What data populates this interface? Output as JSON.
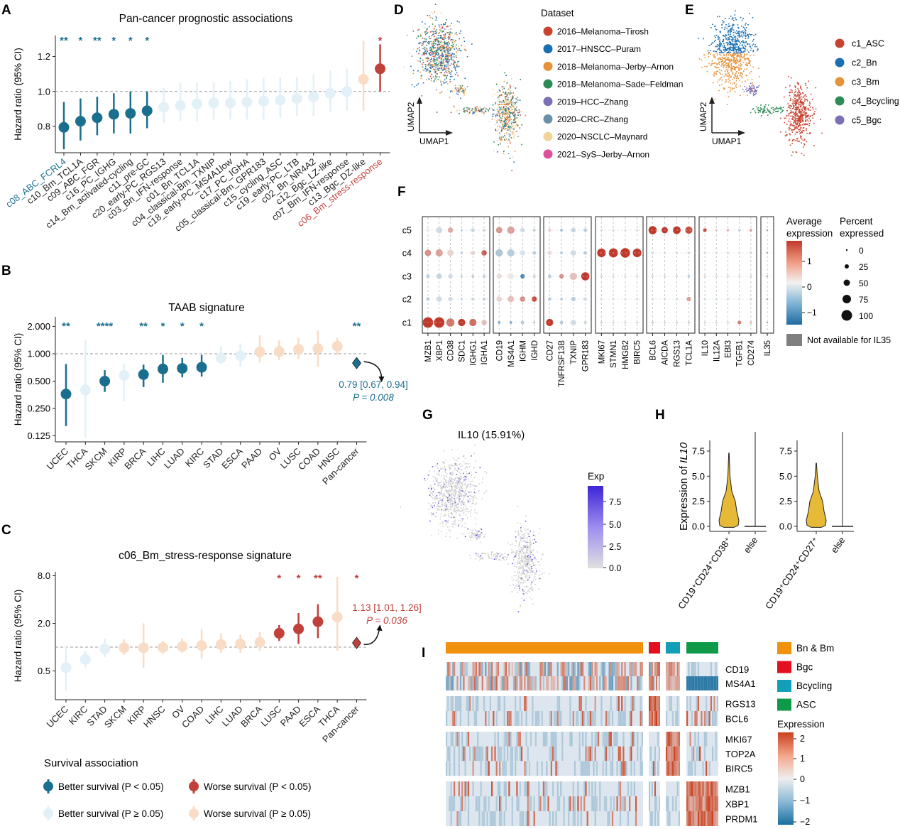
{
  "colors": {
    "better_sig": "#1b6f8e",
    "better_ns": "#e2f0f7",
    "worse_sig": "#c0413b",
    "worse_ns": "#f9dcc6",
    "grid": "#999999"
  },
  "panels": {
    "A": "A",
    "B": "B",
    "C": "C",
    "D": "D",
    "E": "E",
    "F": "F",
    "G": "G",
    "H": "H",
    "I": "I"
  },
  "chart_data": [
    {
      "panel": "A",
      "type": "scatter",
      "title": "Pan-cancer prognostic associations",
      "ylabel": "Hazard ratio (95% CI)",
      "ylim": [
        0.65,
        1.32
      ],
      "yticks": [
        "0.8",
        "1.0",
        "1.2"
      ],
      "reference_line": 1.0,
      "categories": [
        "c08_ABC_FCRL4",
        "c10_Bm_TCL1A",
        "c09_ABC_FGR",
        "c16_PC_IGHG",
        "c14_Bm_activated-cycling",
        "c11_pre-GC",
        "c20_early-PC_RGS13",
        "c03_Bn_IFN-response",
        "c01_Bn_TCL1A",
        "c04_classical-Bm_TXNIP",
        "c18_early-PC_MS4A1low",
        "c17_PC_IGHA",
        "c05_classical-Bm_GPR183",
        "c15_cycling_ASC",
        "c19_early-PC_LTB",
        "c02_Bn_NR4A2",
        "c12_Bgc_LZ-like",
        "c07_Bm_IFN-response",
        "c13_Bgc_DZ-like",
        "c06_Bm_stress-response"
      ],
      "hr": [
        0.795,
        0.83,
        0.85,
        0.87,
        0.875,
        0.89,
        0.91,
        0.92,
        0.93,
        0.935,
        0.935,
        0.94,
        0.945,
        0.95,
        0.96,
        0.97,
        0.99,
        1.0,
        1.07,
        1.13
      ],
      "low": [
        0.67,
        0.72,
        0.75,
        0.76,
        0.76,
        0.79,
        0.82,
        0.83,
        0.83,
        0.84,
        0.84,
        0.84,
        0.84,
        0.85,
        0.86,
        0.86,
        0.88,
        0.89,
        0.89,
        1.0
      ],
      "high": [
        0.94,
        0.96,
        0.97,
        0.99,
        1.0,
        1.0,
        1.02,
        1.05,
        1.05,
        1.05,
        1.06,
        1.07,
        1.08,
        1.08,
        1.08,
        1.1,
        1.12,
        1.13,
        1.29,
        1.27
      ],
      "group": [
        "bs",
        "bs",
        "bs",
        "bs",
        "bs",
        "bs",
        "bn",
        "bn",
        "bn",
        "bn",
        "bn",
        "bn",
        "bn",
        "bn",
        "bn",
        "bn",
        "bn",
        "bn",
        "wn",
        "ws"
      ],
      "stars": [
        "**",
        "*",
        "**",
        "*",
        "*",
        "*",
        "",
        "",
        "",
        "",
        "",
        "",
        "",
        "",
        "",
        "",
        "",
        "",
        "",
        "*"
      ]
    },
    {
      "panel": "B",
      "type": "scatter",
      "title": "TAAB signature",
      "ylabel": "Hazard ratio (95% CI)",
      "yscale": "log",
      "yticks": [
        "2.000",
        "1.000",
        "0.500",
        "0.250",
        "0.125"
      ],
      "reference_line": 1.0,
      "categories": [
        "UCEC",
        "THCA",
        "SKCM",
        "KIRP",
        "BRCA",
        "LIHC",
        "LUAD",
        "KIRC",
        "STAD",
        "ESCA",
        "PAAD",
        "OV",
        "LUSC",
        "COAD",
        "HNSC",
        "Pan-cancer"
      ],
      "hr": [
        0.36,
        0.4,
        0.5,
        0.58,
        0.59,
        0.68,
        0.69,
        0.71,
        0.9,
        0.95,
        1.05,
        1.06,
        1.12,
        1.14,
        1.21,
        0.79
      ],
      "low": [
        0.16,
        0.12,
        0.38,
        0.3,
        0.43,
        0.48,
        0.55,
        0.56,
        0.77,
        0.72,
        0.8,
        0.85,
        0.88,
        0.72,
        0.97,
        0.67
      ],
      "high": [
        0.77,
        1.4,
        0.66,
        0.78,
        0.76,
        0.97,
        0.9,
        0.97,
        1.2,
        1.3,
        1.6,
        1.4,
        1.5,
        1.8,
        1.5,
        0.94
      ],
      "group": [
        "bs",
        "bn",
        "bs",
        "bn",
        "bs",
        "bs",
        "bs",
        "bs",
        "bn",
        "bn",
        "wn",
        "wn",
        "wn",
        "wn",
        "wn",
        "diamond"
      ],
      "stars": [
        "**",
        "",
        "****",
        "",
        "**",
        "*",
        "*",
        "*",
        "",
        "",
        "",
        "",
        "",
        "",
        "",
        "**"
      ],
      "annotation": {
        "line1": "0.79 [0.67, 0.94]",
        "line2": "P = 0.008"
      }
    },
    {
      "panel": "C",
      "type": "scatter",
      "title": "c06_Bm_stress-response signature",
      "ylabel": "Hazard ratio (95% CI)",
      "yscale": "log",
      "yticks": [
        "8.0",
        "2.0",
        "0.5"
      ],
      "reference_line": 1.0,
      "categories": [
        "UCEC",
        "KIRC",
        "STAD",
        "SKCM",
        "KIRP",
        "HNSC",
        "OV",
        "COAD",
        "LIHC",
        "LUAD",
        "BRCA",
        "LUSC",
        "PAAD",
        "ESCA",
        "THCA",
        "Pan-cancer"
      ],
      "hr": [
        0.55,
        0.7,
        0.95,
        0.98,
        0.98,
        0.99,
        1.02,
        1.05,
        1.08,
        1.1,
        1.15,
        1.5,
        1.7,
        2.1,
        2.4,
        1.13
      ],
      "low": [
        0.28,
        0.55,
        0.75,
        0.8,
        0.55,
        0.82,
        0.85,
        0.72,
        0.85,
        0.85,
        0.9,
        1.2,
        1.1,
        1.3,
        0.9,
        1.01
      ],
      "high": [
        1.05,
        0.9,
        1.3,
        1.25,
        2.0,
        1.2,
        1.3,
        1.7,
        1.5,
        1.45,
        1.55,
        1.9,
        2.7,
        3.5,
        7.8,
        1.26
      ],
      "group": [
        "bn",
        "bn",
        "bn",
        "wn",
        "wn",
        "wn",
        "wn",
        "wn",
        "wn",
        "wn",
        "wn",
        "ws",
        "ws",
        "ws",
        "wn",
        "diamond"
      ],
      "stars": [
        "",
        "",
        "",
        "",
        "",
        "",
        "",
        "",
        "",
        "",
        "",
        "*",
        "*",
        "**",
        "",
        "*"
      ],
      "annotation": {
        "line1": "1.13 [1.01, 1.26]",
        "line2": "P = 0.036"
      }
    }
  ],
  "legendABC": {
    "title": "Survival association",
    "items": [
      {
        "label": "Better survival (P < 0.05)"
      },
      {
        "label": "Worse survival (P < 0.05)"
      },
      {
        "label": "Better survival (P ≥ 0.05)"
      },
      {
        "label": "Worse survival (P ≥ 0.05)"
      }
    ]
  },
  "panelD": {
    "xlabel": "UMAP1",
    "ylabel": "UMAP2",
    "legend_title": "Dataset",
    "legend": [
      {
        "label": "2016–Melanoma–Tirosh",
        "color": "#c8432f"
      },
      {
        "label": "2017–HNSCC–Puram",
        "color": "#1a6fb0"
      },
      {
        "label": "2018–Melanoma–Jerby–Arnon",
        "color": "#e5923a"
      },
      {
        "label": "2018–Melanoma–Sade–Feldman",
        "color": "#2e8b57"
      },
      {
        "label": "2019–HCC–Zhang",
        "color": "#7d6fb5"
      },
      {
        "label": "2020–CRC–Zhang",
        "color": "#6b91a8"
      },
      {
        "label": "2020–NSCLC–Maynard",
        "color": "#f2d49a"
      },
      {
        "label": "2021–SyS–Jerby–Arnon",
        "color": "#e0509a"
      }
    ]
  },
  "panelE": {
    "xlabel": "UMAP1",
    "ylabel": "UMAP2",
    "legend": [
      {
        "label": "c1_ASC",
        "color": "#c8432f"
      },
      {
        "label": "c2_Bn",
        "color": "#1a6fb0"
      },
      {
        "label": "c3_Bm",
        "color": "#e5923a"
      },
      {
        "label": "c4_Bcycling",
        "color": "#2e8b57"
      },
      {
        "label": "c5_Bgc",
        "color": "#7d6fb5"
      }
    ]
  },
  "panelF": {
    "rows": [
      "c5",
      "c4",
      "c3",
      "c2",
      "c1"
    ],
    "groups": [
      [
        "MZB1",
        "XBP1",
        "CD38",
        "SDC1",
        "IGHG1",
        "IGHA1"
      ],
      [
        "CD19",
        "MS4A1",
        "IGHM",
        "IGHD"
      ],
      [
        "CD27",
        "TNFRSF13B",
        "TXNIP",
        "GPR183"
      ],
      [
        "MKI67",
        "STMN1",
        "HMGB2",
        "BIRC5"
      ],
      [
        "BCL6",
        "AICDA",
        "RGS13",
        "TCL1A"
      ],
      [
        "IL10",
        "IL12A",
        "EBI3",
        "TGFB1",
        "CD274"
      ],
      [
        "IL35"
      ]
    ],
    "legend_avg_title1": "Average",
    "legend_avg_title2": "expression",
    "legend_avg_ticks": [
      "1",
      "0",
      "−1"
    ],
    "legend_pct_title1": "Percent",
    "legend_pct_title2": "expressed",
    "legend_pct_ticks": [
      "0",
      "25",
      "50",
      "75",
      "100"
    ],
    "na_label": "Not available for IL35"
  },
  "panelG": {
    "title": "IL10 (15.91%)",
    "legend_title": "Exp",
    "legend_ticks": [
      "7.5",
      "5.0",
      "2.5",
      "0.0"
    ]
  },
  "panelH": {
    "ylabel_prefix": "Expression of ",
    "ylabel_gene": "IL10",
    "yticks": [
      "7.5",
      "5.0",
      "2.5",
      "0.0"
    ],
    "plot1_labels": [
      "CD19⁺CD24⁺CD38⁺",
      "else"
    ],
    "plot2_labels": [
      "CD19⁺CD24⁺CD27⁺",
      "else"
    ]
  },
  "panelI": {
    "gene_groups": [
      [
        "CD19",
        "MS4A1"
      ],
      [
        "RGS13",
        "BCL6"
      ],
      [
        "MKI67",
        "TOP2A",
        "BIRC5"
      ],
      [
        "MZB1",
        "XBP1",
        "PRDM1"
      ]
    ],
    "legend": [
      {
        "label": "Bn & Bm",
        "color": "#f0920e"
      },
      {
        "label": "Bgc",
        "color": "#e3101f"
      },
      {
        "label": "Bcycling",
        "color": "#11a0b8"
      },
      {
        "label": "ASC",
        "color": "#0f9a4a"
      }
    ],
    "expr_title": "Expression",
    "expr_ticks": [
      "2",
      "1",
      "0",
      "−1",
      "−2"
    ]
  }
}
